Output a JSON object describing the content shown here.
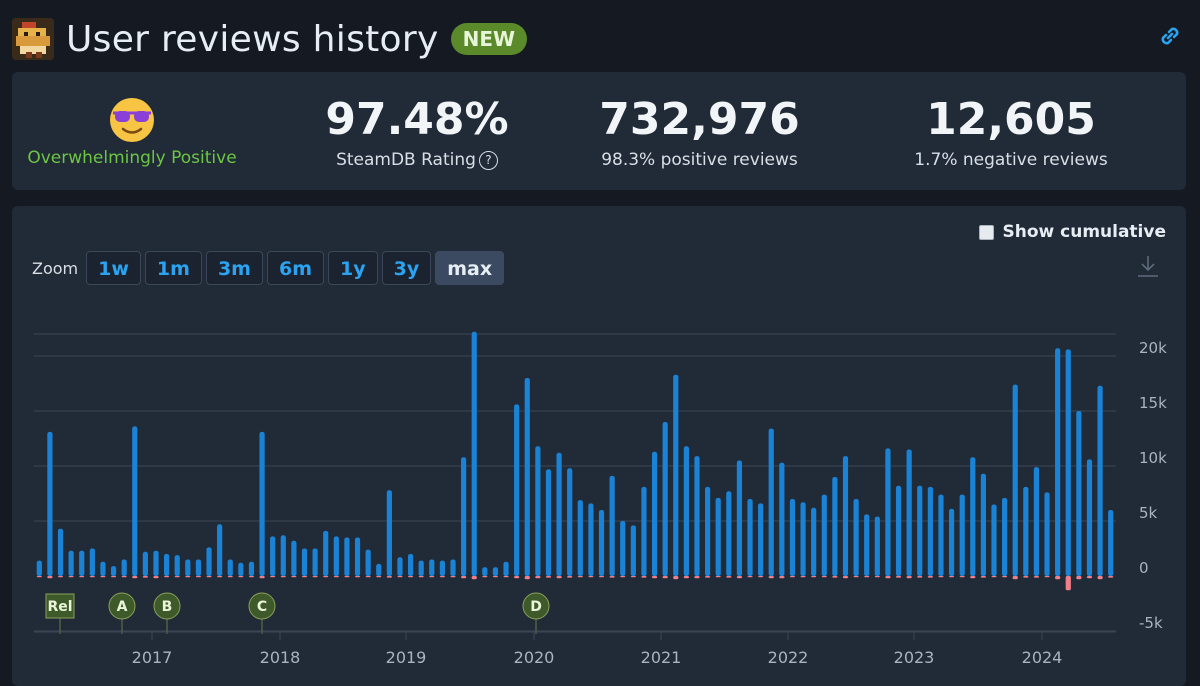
{
  "header": {
    "title": "User reviews history",
    "badge": "NEW",
    "icons": {
      "game": "game-pixel-icon",
      "link": "link-icon"
    }
  },
  "stats": {
    "overall_label": "Overwhelmingly Positive",
    "overall_emoji": "sunglasses-face-icon",
    "rating_value": "97.48%",
    "rating_label": "SteamDB Rating",
    "rating_help": "?",
    "positive_value": "732,976",
    "positive_label": "98.3% positive reviews",
    "negative_value": "12,605",
    "negative_label": "1.7% negative reviews"
  },
  "controls": {
    "show_cumulative": "Show cumulative",
    "zoom_label": "Zoom",
    "zoom_buttons": [
      "1w",
      "1m",
      "3m",
      "6m",
      "1y",
      "3y",
      "max"
    ],
    "active_zoom": "max"
  },
  "colors": {
    "positive": "#1a83d6",
    "negative": "#f07f8a",
    "positive_text": "#6cc644",
    "accent": "#2ba3f0",
    "marker": "#3f5a2a"
  },
  "chart_data": {
    "type": "bar",
    "x_ticks": [
      "2017",
      "2018",
      "2019",
      "2020",
      "2021",
      "2022",
      "2023",
      "2024"
    ],
    "y_ticks": [
      "20k",
      "15k",
      "10k",
      "5k",
      "0",
      "-5k"
    ],
    "ylim": [
      -5000,
      22000
    ],
    "series": [
      {
        "key": "positive",
        "values": [
          1400,
          13100,
          4300,
          2300,
          2300,
          2500,
          1300,
          900,
          1500,
          13600,
          2200,
          2300,
          2000,
          1900,
          1500,
          1500,
          2600,
          4700,
          1500,
          1200,
          1300,
          13100,
          3600,
          3700,
          3200,
          2500,
          2500,
          4100,
          3600,
          3500,
          3500,
          2400,
          1100,
          7800,
          1700,
          2000,
          1400,
          1500,
          1400,
          1500,
          10800,
          22200,
          800,
          800,
          1300,
          15600,
          18000,
          11800,
          9700,
          11200,
          9800,
          6900,
          6600,
          6000,
          9100,
          5000,
          4600,
          8100,
          11300,
          14000,
          18300,
          11800,
          10900,
          8100,
          7100,
          7700,
          10500,
          7000,
          6600,
          13400,
          10300,
          7000,
          6700,
          6200,
          7400,
          9000,
          10900,
          7000,
          5600,
          5400,
          11600,
          8200,
          11500,
          8200,
          8100,
          7400,
          6100,
          7400,
          10800,
          9300,
          6500,
          7100,
          17400,
          8100,
          9900,
          7600,
          20700,
          20600,
          15000,
          10600,
          17300,
          6000
        ]
      },
      {
        "key": "negative",
        "values": [
          -100,
          -200,
          -100,
          -50,
          -50,
          -50,
          -50,
          -50,
          -50,
          -200,
          -150,
          -200,
          -100,
          -50,
          -50,
          -50,
          -100,
          -100,
          -50,
          -50,
          -50,
          -200,
          -100,
          -100,
          -100,
          -50,
          -50,
          -100,
          -100,
          -100,
          -100,
          -50,
          -50,
          -150,
          -50,
          -50,
          -50,
          -50,
          -50,
          -50,
          -200,
          -300,
          -50,
          -50,
          -50,
          -200,
          -300,
          -200,
          -150,
          -200,
          -150,
          -100,
          -100,
          -100,
          -150,
          -100,
          -100,
          -150,
          -200,
          -200,
          -300,
          -200,
          -200,
          -150,
          -100,
          -150,
          -200,
          -100,
          -100,
          -200,
          -200,
          -100,
          -100,
          -100,
          -100,
          -150,
          -200,
          -100,
          -100,
          -100,
          -200,
          -150,
          -200,
          -150,
          -150,
          -100,
          -100,
          -100,
          -200,
          -150,
          -100,
          -100,
          -300,
          -150,
          -150,
          -100,
          -300,
          -1300,
          -300,
          -200,
          -300,
          -150
        ]
      }
    ],
    "markers": [
      "Rel",
      "A",
      "B",
      "C",
      "D"
    ]
  }
}
